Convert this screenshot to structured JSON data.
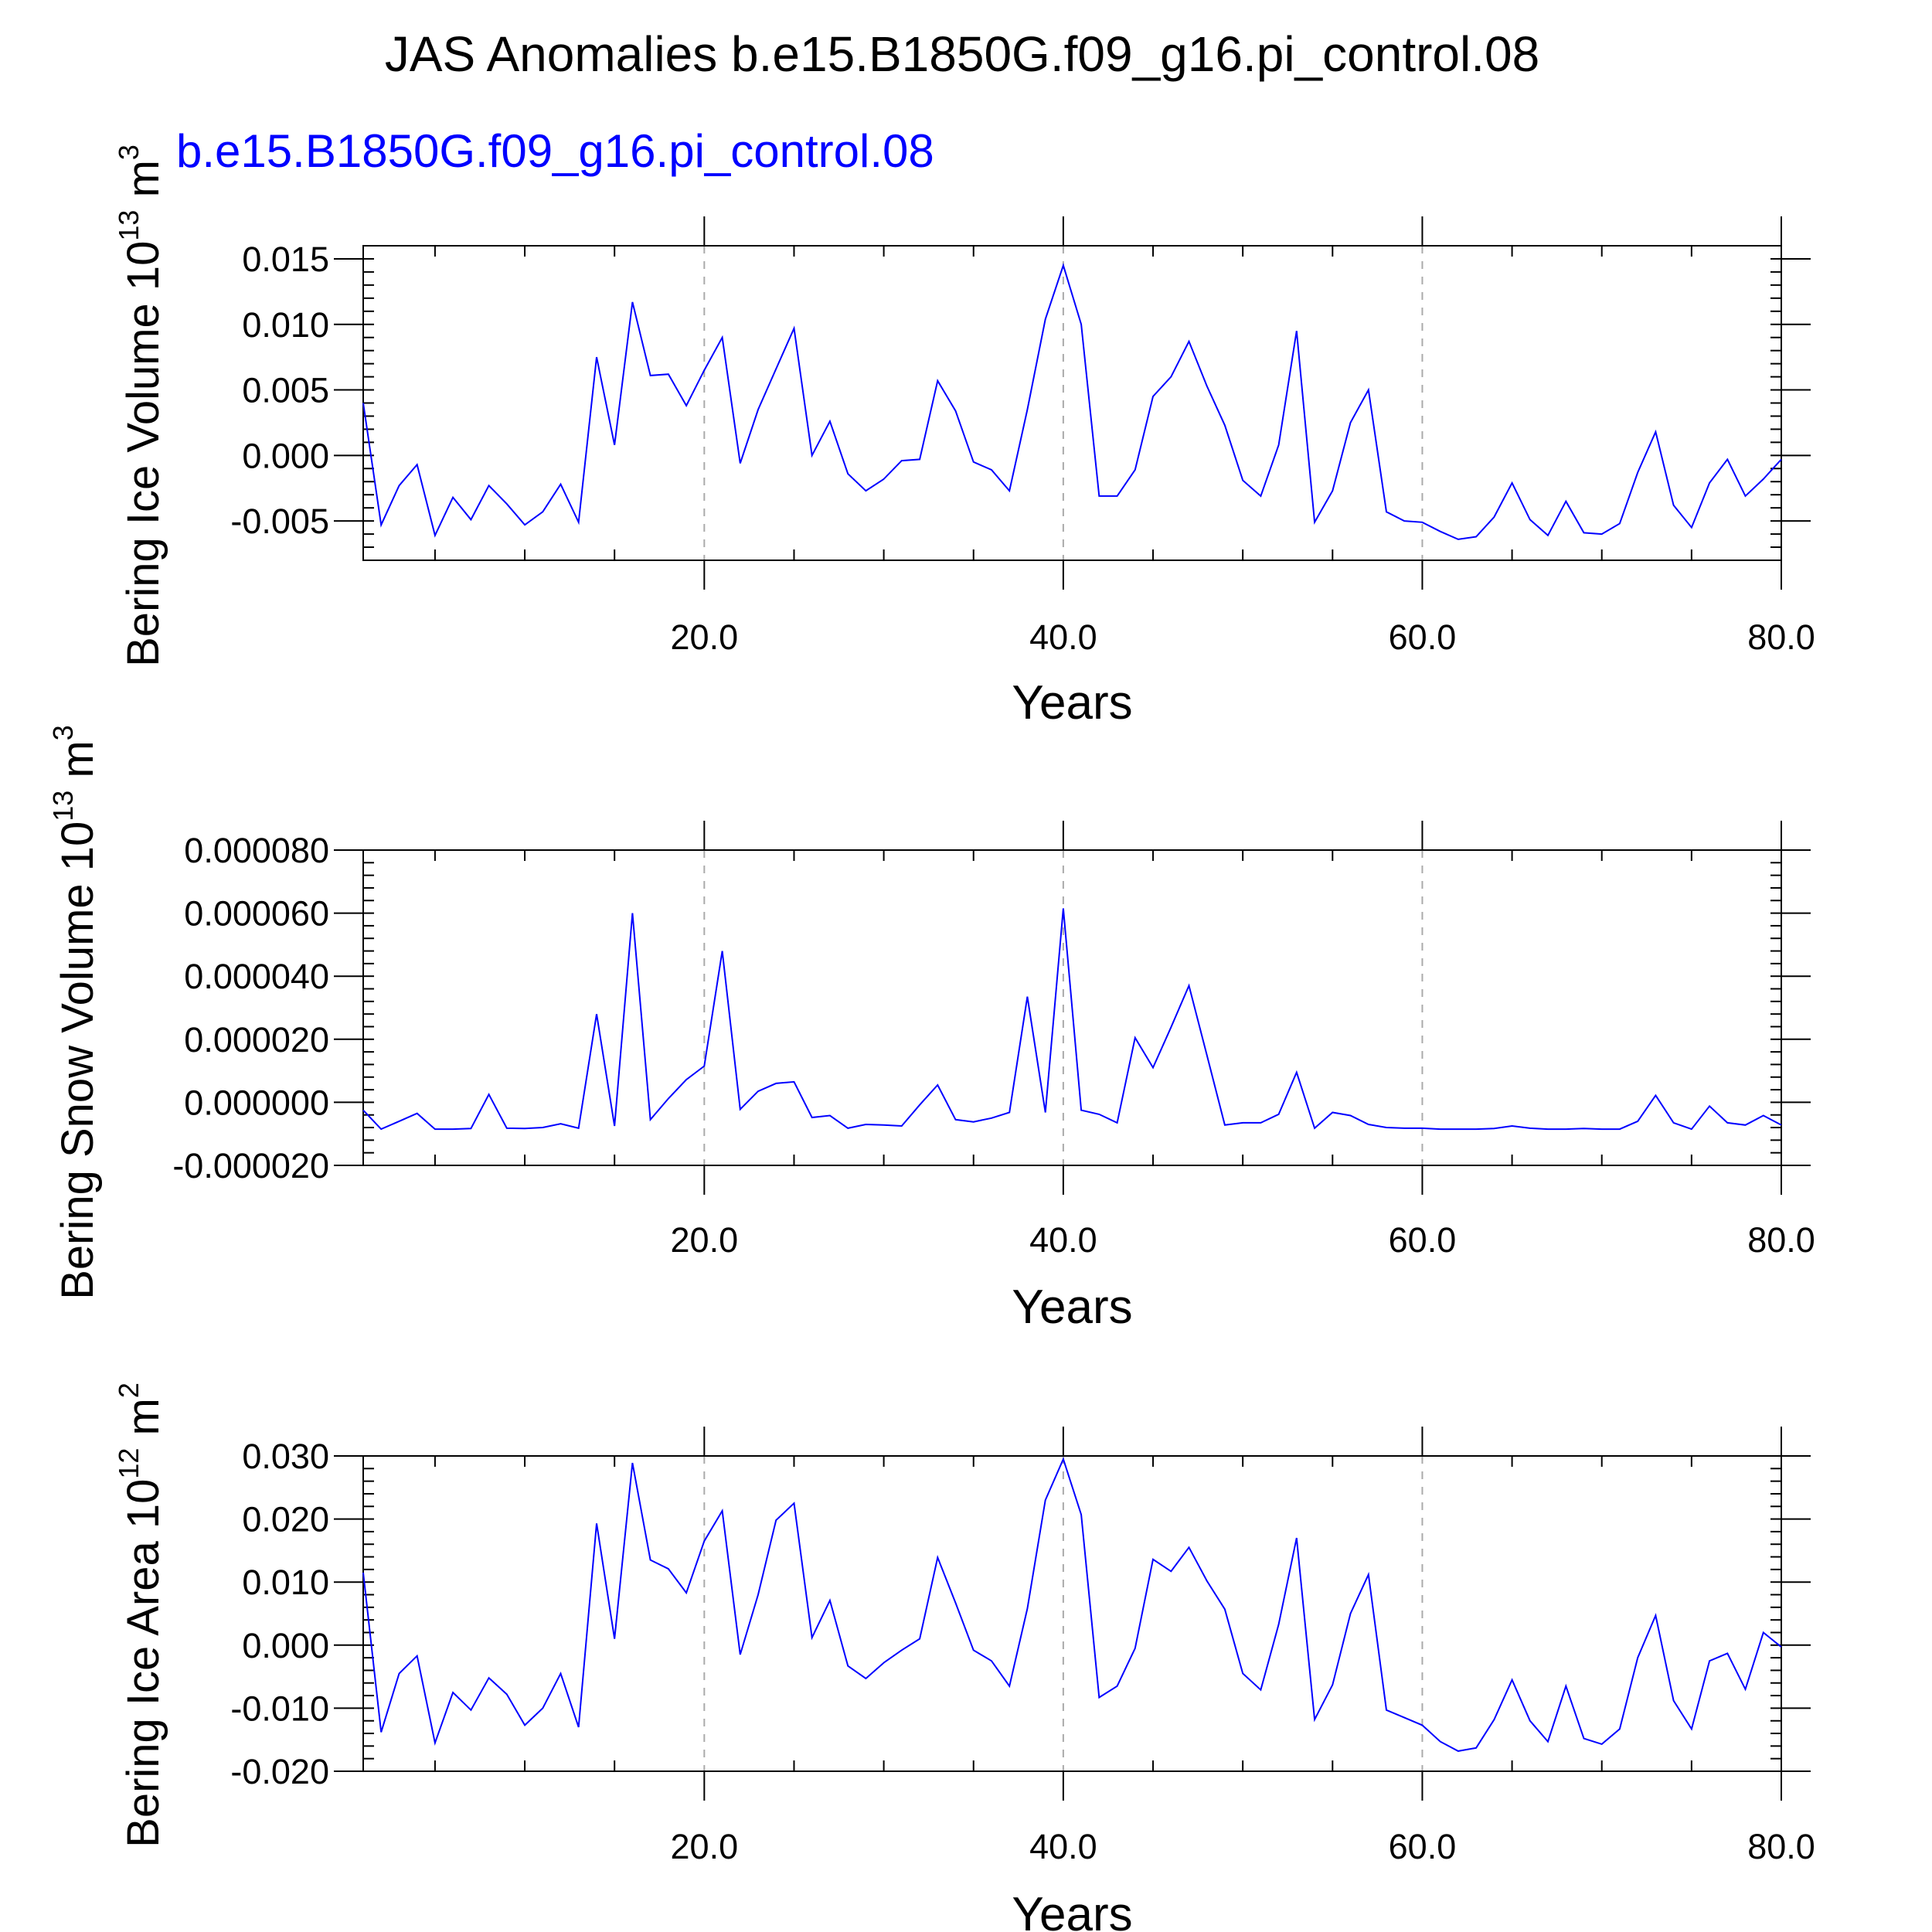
{
  "figure": {
    "title": "JAS Anomalies b.e15.B1850G.f09_g16.pi_control.08",
    "subtitle": "b.e15.B1850G.f09_g16.pi_control.08",
    "line_color": "#0000ff"
  },
  "chart_data": [
    {
      "type": "line",
      "ylabel": "Bering Ice Volume 10",
      "ylabel_sup": "13",
      "ylabel_unit": " m",
      "ylabel_unit_sup": "3",
      "xlabel": "Years",
      "xlim": [
        1,
        80
      ],
      "ylim": [
        -0.008,
        0.016
      ],
      "xticks": [
        20,
        40,
        60,
        80
      ],
      "xtick_labels": [
        "20.0",
        "40.0",
        "60.0",
        "80.0"
      ],
      "yticks": [
        -0.005,
        0.0,
        0.005,
        0.01,
        0.015
      ],
      "ytick_labels": [
        "-0.005",
        "0.000",
        "0.005",
        "0.010",
        "0.015"
      ],
      "grid": "dashed vertical at major x ticks",
      "series": [
        {
          "x": [
            1,
            2,
            3,
            4,
            5,
            6,
            7,
            8,
            9,
            10,
            11,
            12,
            13,
            14,
            15,
            16,
            17,
            18,
            19,
            20,
            21,
            22,
            23,
            24,
            25,
            26,
            27,
            28,
            29,
            30,
            31,
            32,
            33,
            34,
            35,
            36,
            37,
            38,
            39,
            40,
            41,
            42,
            43,
            44,
            45,
            46,
            47,
            48,
            49,
            50,
            51,
            52,
            53,
            54,
            55,
            56,
            57,
            58,
            59,
            60,
            61,
            62,
            63,
            64,
            65,
            66,
            67,
            68,
            69,
            70,
            71,
            72,
            73,
            74,
            75,
            76,
            77,
            78,
            79,
            80
          ],
          "values": [
            0.004,
            -0.0053,
            -0.0023,
            -0.0007,
            -0.0061,
            -0.0032,
            -0.0049,
            -0.0023,
            -0.0037,
            -0.0053,
            -0.0043,
            -0.0022,
            -0.0051,
            0.0075,
            0.0008,
            0.0117,
            0.0061,
            0.0062,
            0.0038,
            0.0065,
            0.009,
            -0.0006,
            0.0035,
            0.0066,
            0.0097,
            0.0,
            0.0026,
            -0.0014,
            -0.0027,
            -0.0018,
            -0.0004,
            -0.0003,
            0.0057,
            0.0034,
            -0.0005,
            -0.0011,
            -0.0027,
            0.0035,
            0.0104,
            0.0145,
            0.01,
            -0.0031,
            -0.0031,
            -0.0011,
            0.0045,
            0.006,
            0.0087,
            0.0053,
            0.0023,
            -0.0019,
            -0.0031,
            0.0008,
            0.0095,
            -0.0051,
            -0.0027,
            0.0025,
            0.005,
            -0.0043,
            -0.005,
            -0.0051,
            -0.0058,
            -0.0064,
            -0.0062,
            -0.0047,
            -0.0021,
            -0.0049,
            -0.0061,
            -0.0035,
            -0.0059,
            -0.006,
            -0.0052,
            -0.0013,
            0.0018,
            -0.0038,
            -0.0055,
            -0.0021,
            -0.0003,
            -0.0031,
            -0.0018,
            -0.0003
          ]
        }
      ]
    },
    {
      "type": "line",
      "ylabel": "Bering Snow Volume 10",
      "ylabel_sup": "13",
      "ylabel_unit": " m",
      "ylabel_unit_sup": "3",
      "xlabel": "Years",
      "xlim": [
        1,
        80
      ],
      "ylim": [
        -2e-05,
        8e-05
      ],
      "xticks": [
        20,
        40,
        60,
        80
      ],
      "xtick_labels": [
        "20.0",
        "40.0",
        "60.0",
        "80.0"
      ],
      "yticks": [
        -2e-05,
        0.0,
        2e-05,
        4e-05,
        6e-05,
        8e-05
      ],
      "ytick_labels": [
        "-0.000020",
        "0.000000",
        "0.000020",
        "0.000040",
        "0.000060",
        "0.000080"
      ],
      "grid": "dashed vertical at major x ticks",
      "series": [
        {
          "x": [
            1,
            2,
            3,
            4,
            5,
            6,
            7,
            8,
            9,
            10,
            11,
            12,
            13,
            14,
            15,
            16,
            17,
            18,
            19,
            20,
            21,
            22,
            23,
            24,
            25,
            26,
            27,
            28,
            29,
            30,
            31,
            32,
            33,
            34,
            35,
            36,
            37,
            38,
            39,
            40,
            41,
            42,
            43,
            44,
            45,
            46,
            47,
            48,
            49,
            50,
            51,
            52,
            53,
            54,
            55,
            56,
            57,
            58,
            59,
            60,
            61,
            62,
            63,
            64,
            65,
            66,
            67,
            68,
            69,
            70,
            71,
            72,
            73,
            74,
            75,
            76,
            77,
            78,
            79,
            80
          ],
          "values": [
            -2.5e-06,
            -8.5e-06,
            -6e-06,
            -3.5e-06,
            -8.5e-06,
            -8.5e-06,
            -8.3e-06,
            2.5e-06,
            -8.2e-06,
            -8.3e-06,
            -8e-06,
            -6.8e-06,
            -8.2e-06,
            2.8e-05,
            -7.5e-06,
            6e-05,
            -5.5e-06,
            1.2e-06,
            7.2e-06,
            1.15e-05,
            4.8e-05,
            -2.2e-06,
            3.5e-06,
            6e-06,
            6.5e-06,
            -4.8e-06,
            -4.2e-06,
            -8.2e-06,
            -7e-06,
            -7.2e-06,
            -7.5e-06,
            -8e-07,
            5.5e-06,
            -5.5e-06,
            -6.2e-06,
            -5e-06,
            -3.2e-06,
            3.35e-05,
            -3.2e-06,
            6.15e-05,
            -2.5e-06,
            -3.8e-06,
            -6.5e-06,
            2.05e-05,
            1.1e-05,
            2.38e-05,
            3.7e-05,
            1.5e-05,
            -7.2e-06,
            -6.5e-06,
            -6.5e-06,
            -3.8e-06,
            9.5e-06,
            -8.2e-06,
            -3.2e-06,
            -4.2e-06,
            -7e-06,
            -8e-06,
            -8.2e-06,
            -8.2e-06,
            -8.5e-06,
            -8.5e-06,
            -8.5e-06,
            -8.3e-06,
            -7.5e-06,
            -8.2e-06,
            -8.5e-06,
            -8.5e-06,
            -8.3e-06,
            -8.5e-06,
            -8.5e-06,
            -6e-06,
            2.2e-06,
            -6.5e-06,
            -8.5e-06,
            -1.2e-06,
            -6.5e-06,
            -7.2e-06,
            -4.2e-06,
            -7.2e-06
          ]
        }
      ]
    },
    {
      "type": "line",
      "ylabel": "Bering Ice Area 10",
      "ylabel_sup": "12",
      "ylabel_unit": " m",
      "ylabel_unit_sup": "2",
      "xlabel": "Years",
      "xlim": [
        1,
        80
      ],
      "ylim": [
        -0.02,
        0.03
      ],
      "xticks": [
        20,
        40,
        60,
        80
      ],
      "xtick_labels": [
        "20.0",
        "40.0",
        "60.0",
        "80.0"
      ],
      "yticks": [
        -0.02,
        -0.01,
        0.0,
        0.01,
        0.02,
        0.03
      ],
      "ytick_labels": [
        "-0.020",
        "-0.010",
        "0.000",
        "0.010",
        "0.020",
        "0.030"
      ],
      "grid": "dashed vertical at major x ticks",
      "series": [
        {
          "x": [
            1,
            2,
            3,
            4,
            5,
            6,
            7,
            8,
            9,
            10,
            11,
            12,
            13,
            14,
            15,
            16,
            17,
            18,
            19,
            20,
            21,
            22,
            23,
            24,
            25,
            26,
            27,
            28,
            29,
            30,
            31,
            32,
            33,
            34,
            35,
            36,
            37,
            38,
            39,
            40,
            41,
            42,
            43,
            44,
            45,
            46,
            47,
            48,
            49,
            50,
            51,
            52,
            53,
            54,
            55,
            56,
            57,
            58,
            59,
            60,
            61,
            62,
            63,
            64,
            65,
            66,
            67,
            68,
            69,
            70,
            71,
            72,
            73,
            74,
            75,
            76,
            77,
            78,
            79,
            80
          ],
          "values": [
            0.0115,
            -0.0138,
            -0.0045,
            -0.0017,
            -0.0155,
            -0.0075,
            -0.0103,
            -0.0052,
            -0.0078,
            -0.0127,
            -0.01,
            -0.0045,
            -0.013,
            0.0193,
            0.001,
            0.0289,
            0.0135,
            0.0121,
            0.0083,
            0.0165,
            0.0213,
            -0.0015,
            0.008,
            0.0198,
            0.0225,
            0.0012,
            0.0071,
            -0.0033,
            -0.0053,
            -0.0028,
            -0.0008,
            0.001,
            0.0139,
            0.0067,
            -0.0008,
            -0.0025,
            -0.0065,
            0.0058,
            0.023,
            0.0295,
            0.0207,
            -0.0083,
            -0.0065,
            -0.0005,
            0.0136,
            0.0117,
            0.0155,
            0.0102,
            0.0057,
            -0.0045,
            -0.0071,
            0.0033,
            0.017,
            -0.0118,
            -0.0063,
            0.005,
            0.0112,
            -0.0103,
            -0.0115,
            -0.0127,
            -0.0153,
            -0.0168,
            -0.0163,
            -0.0118,
            -0.0055,
            -0.012,
            -0.0153,
            -0.0065,
            -0.0148,
            -0.0157,
            -0.0133,
            -0.002,
            0.0047,
            -0.0088,
            -0.0133,
            -0.0025,
            -0.0013,
            -0.007,
            0.002,
            -0.0003
          ]
        }
      ]
    }
  ]
}
